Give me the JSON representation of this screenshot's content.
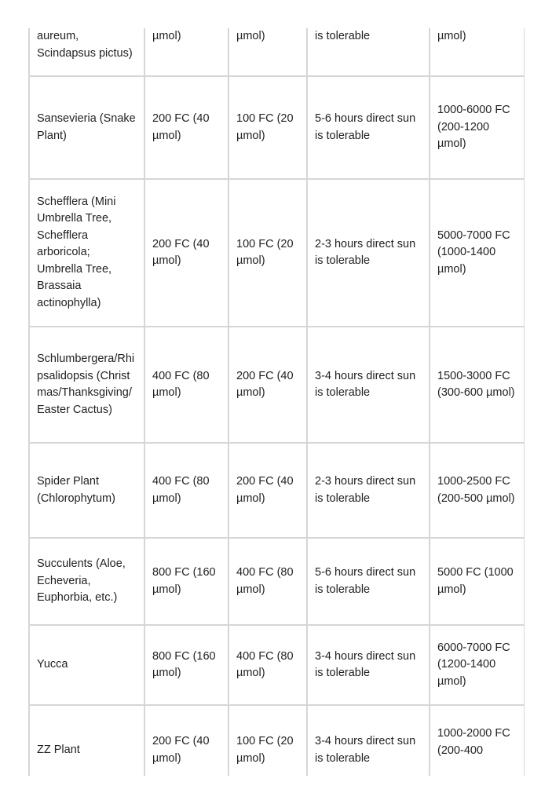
{
  "rows": [
    {
      "plant": "aureum, Scindapsus pictus)",
      "min": "µmol)",
      "low": "µmol)",
      "direct": "is tolerable",
      "max": "µmol)"
    },
    {
      "plant": "Sansevieria (Snake Plant)",
      "min": "200 FC (40 µmol)",
      "low": "100 FC (20 µmol)",
      "direct": "5-6 hours direct sun is tolerable",
      "max": "1000-6000 FC (200-1200 µmol)"
    },
    {
      "plant": "Schefflera (Mini Umbrella Tree, Schefflera arboricola; Umbrella Tree, Brassaia actinophylla)",
      "min": "200 FC (40 µmol)",
      "low": "100 FC (20 µmol)",
      "direct": "2-3 hours direct sun is tolerable",
      "max": "5000-7000 FC (1000-1400 µmol)"
    },
    {
      "plant": "Schlumbergera/Rhipsalidopsis (Christmas/Thanksgiving/Easter Cactus)",
      "min": "400 FC (80 µmol)",
      "low": "200 FC (40 µmol)",
      "direct": "3-4 hours direct sun is tolerable",
      "max": "1500-3000 FC (300-600 µmol)"
    },
    {
      "plant": "Spider Plant (Chlorophytum)",
      "min": "400 FC (80 µmol)",
      "low": "200 FC (40 µmol)",
      "direct": "2-3 hours direct sun is tolerable",
      "max": "1000-2500 FC (200-500 µmol)"
    },
    {
      "plant": "Succulents (Aloe, Echeveria, Euphorbia, etc.)",
      "min": "800 FC (160 µmol)",
      "low": "400 FC (80 µmol)",
      "direct": "5-6 hours direct sun is tolerable",
      "max": "5000 FC (1000 µmol)"
    },
    {
      "plant": "Yucca",
      "min": "800 FC (160 µmol)",
      "low": "400 FC (80 µmol)",
      "direct": "3-4 hours direct sun is tolerable",
      "max": "6000-7000 FC (1200-1400 µmol)"
    },
    {
      "plant": "ZZ Plant",
      "min": "200 FC (40 µmol)",
      "low": "100 FC (20 µmol)",
      "direct": "3-4 hours direct sun is tolerable",
      "max": "1000-2000 FC (200-400"
    }
  ]
}
